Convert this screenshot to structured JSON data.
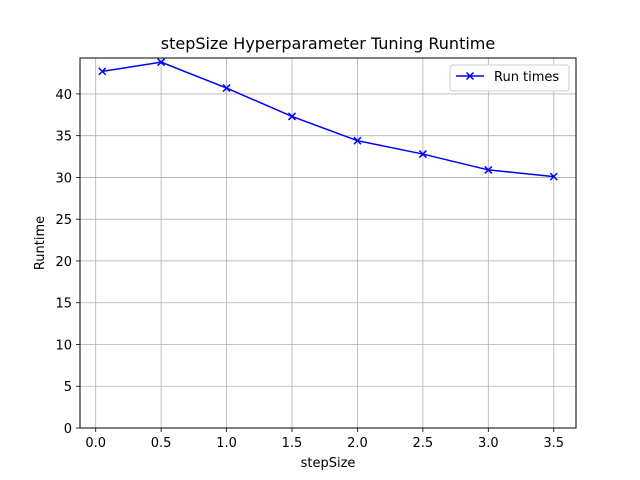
{
  "chart_data": {
    "type": "line",
    "title": "stepSize Hyperparameter Tuning Runtime",
    "xlabel": "stepSize",
    "ylabel": "Runtime",
    "xlim": [
      -0.12,
      3.67
    ],
    "ylim": [
      0,
      44.3
    ],
    "xticks": [
      0.0,
      0.5,
      1.0,
      1.5,
      2.0,
      2.5,
      3.0,
      3.5
    ],
    "xtick_labels": [
      "0.0",
      "0.5",
      "1.0",
      "1.5",
      "2.0",
      "2.5",
      "3.0",
      "3.5"
    ],
    "yticks": [
      0,
      5,
      10,
      15,
      20,
      25,
      30,
      35,
      40
    ],
    "ytick_labels": [
      "0",
      "5",
      "10",
      "15",
      "20",
      "25",
      "30",
      "35",
      "40"
    ],
    "grid": true,
    "legend_position": "top-right",
    "series": [
      {
        "name": "Run times",
        "color": "#0000ff",
        "marker": "x",
        "x": [
          0.05,
          0.5,
          1.0,
          1.5,
          2.0,
          2.5,
          3.0,
          3.5
        ],
        "y": [
          42.7,
          43.8,
          40.7,
          37.3,
          34.4,
          32.8,
          30.9,
          30.1
        ]
      }
    ]
  }
}
